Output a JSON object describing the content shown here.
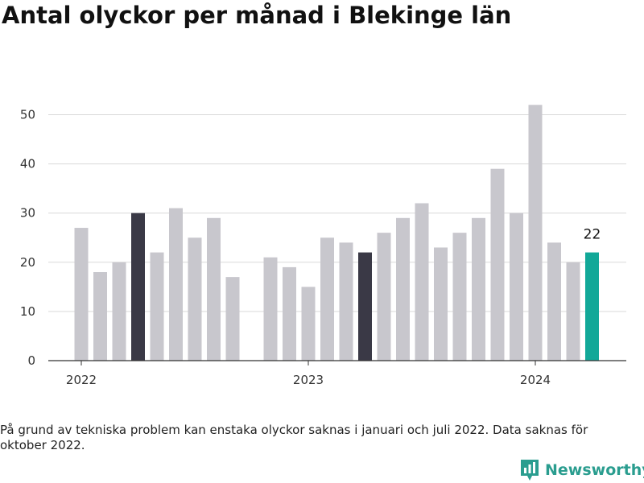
{
  "title": "Antal olyckor per månad i Blekinge län",
  "footnote": "På grund av tekniska problem kan enstaka olyckor saknas i januari och juli 2022. Data saknas för oktober 2022.",
  "brand": {
    "name": "Newsworthy",
    "icon": "bar-chart-pin-icon",
    "color": "#2a9d8f"
  },
  "colors": {
    "default": "#c8c7cd",
    "highlight": "#3a3946",
    "latest": "#12a898",
    "grid": "#d9d9d9",
    "axis": "#333333"
  },
  "chart_data": {
    "type": "bar",
    "title": "Antal olyckor per månad i Blekinge län",
    "xlabel": "",
    "ylabel": "",
    "ylim": [
      0,
      52
    ],
    "yticks": [
      0,
      10,
      20,
      30,
      40,
      50
    ],
    "grid": true,
    "x_tick_labels": [
      {
        "label": "2022",
        "month": "2022-01"
      },
      {
        "label": "2023",
        "month": "2023-01"
      },
      {
        "label": "2024",
        "month": "2024-01"
      }
    ],
    "bars": [
      {
        "month": "2022-01",
        "value": 27,
        "style": "default"
      },
      {
        "month": "2022-02",
        "value": 18,
        "style": "default"
      },
      {
        "month": "2022-03",
        "value": 20,
        "style": "default"
      },
      {
        "month": "2022-04",
        "value": 30,
        "style": "highlight"
      },
      {
        "month": "2022-05",
        "value": 22,
        "style": "default"
      },
      {
        "month": "2022-06",
        "value": 31,
        "style": "default"
      },
      {
        "month": "2022-07",
        "value": 25,
        "style": "default"
      },
      {
        "month": "2022-08",
        "value": 29,
        "style": "default"
      },
      {
        "month": "2022-09",
        "value": 17,
        "style": "default"
      },
      {
        "month": "2022-10",
        "value": null,
        "style": "missing"
      },
      {
        "month": "2022-11",
        "value": 21,
        "style": "default"
      },
      {
        "month": "2022-12",
        "value": 19,
        "style": "default"
      },
      {
        "month": "2023-01",
        "value": 15,
        "style": "default"
      },
      {
        "month": "2023-02",
        "value": 25,
        "style": "default"
      },
      {
        "month": "2023-03",
        "value": 24,
        "style": "default"
      },
      {
        "month": "2023-04",
        "value": 22,
        "style": "highlight"
      },
      {
        "month": "2023-05",
        "value": 26,
        "style": "default"
      },
      {
        "month": "2023-06",
        "value": 29,
        "style": "default"
      },
      {
        "month": "2023-07",
        "value": 32,
        "style": "default"
      },
      {
        "month": "2023-08",
        "value": 23,
        "style": "default"
      },
      {
        "month": "2023-09",
        "value": 26,
        "style": "default"
      },
      {
        "month": "2023-10",
        "value": 29,
        "style": "default"
      },
      {
        "month": "2023-11",
        "value": 39,
        "style": "default"
      },
      {
        "month": "2023-12",
        "value": 30,
        "style": "default"
      },
      {
        "month": "2024-01",
        "value": 52,
        "style": "default"
      },
      {
        "month": "2024-02",
        "value": 24,
        "style": "default"
      },
      {
        "month": "2024-03",
        "value": 20,
        "style": "default"
      },
      {
        "month": "2024-04",
        "value": 22,
        "style": "latest",
        "label": "22"
      }
    ]
  }
}
